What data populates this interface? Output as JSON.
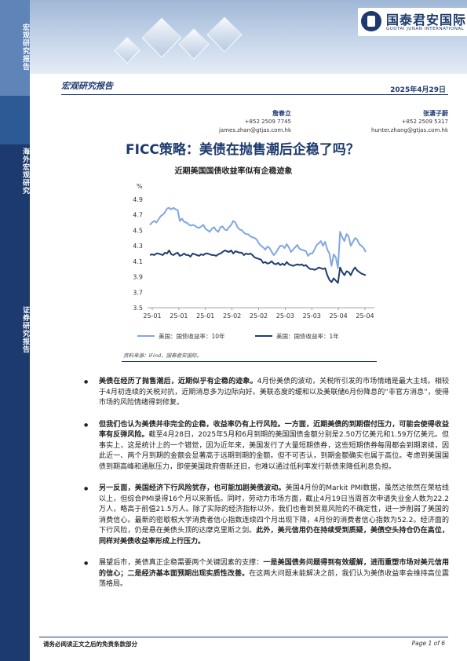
{
  "sidebar": {
    "label_top": "宏观研究报告",
    "label_mid": "海外宏观研究",
    "label_bottom": "证券研究报告"
  },
  "logo": {
    "cn": "国泰君安国际",
    "en": "GUOTAI JUNAN INTERNATIONAL"
  },
  "header": {
    "report_type": "宏观研究报告",
    "date": "2025年4月29日"
  },
  "authors": [
    {
      "name": "詹春立",
      "phone": "+852 2509 7745",
      "email": "james.zhan@gtjas.com.hk"
    },
    {
      "name": "张潇子蔚",
      "phone": "+852 2509 5317",
      "email": "hunter.zhang@gtjas.com.hk"
    }
  ],
  "title": "FICC策略：美债在抛售潮后企稳了吗？",
  "chart_title": "近期美国国债收益率似有企稳迹象",
  "chart_data": {
    "type": "line",
    "title": "近期美国国债收益率似有企稳迹象",
    "ylabel": "%",
    "ylim": [
      3.5,
      5.0
    ],
    "yticks": [
      3.5,
      3.7,
      3.9,
      4.1,
      4.3,
      4.5,
      4.7,
      4.9
    ],
    "xticks": [
      "25-01",
      "25-01",
      "25-01",
      "25-02",
      "25-02",
      "25-03",
      "25-03",
      "25-04",
      "25-04"
    ],
    "grid": false,
    "legend_position": "bottom",
    "colors": {
      "10y": "#7fa7df",
      "1y": "#1f3d6e"
    },
    "series": [
      {
        "name": "美国：国债收益率：10年",
        "values": [
          4.57,
          4.6,
          4.62,
          4.6,
          4.64,
          4.68,
          4.7,
          4.73,
          4.78,
          4.79,
          4.77,
          4.79,
          4.77,
          4.76,
          4.62,
          4.65,
          4.61,
          4.6,
          4.58,
          4.56,
          4.57,
          4.56,
          4.54,
          4.53,
          4.55,
          4.57,
          4.52,
          4.5,
          4.48,
          4.52,
          4.54,
          4.5,
          4.48,
          4.54,
          4.55,
          4.51,
          4.5,
          4.54,
          4.57,
          4.62,
          4.6,
          4.54,
          4.51,
          4.5,
          4.47,
          4.45,
          4.45,
          4.42,
          4.41,
          4.4,
          4.38,
          4.33,
          4.3,
          4.28,
          4.25,
          4.29,
          4.27,
          4.22,
          4.18,
          4.21,
          4.26,
          4.3,
          4.3,
          4.27,
          4.32,
          4.28,
          4.22,
          4.25,
          4.28,
          4.31,
          4.26,
          4.25,
          4.24,
          4.23,
          4.17,
          4.2,
          4.2,
          4.25,
          4.31,
          4.33,
          4.36,
          4.3,
          4.35,
          4.25,
          4.2,
          4.04,
          4.19,
          4.15,
          4.01,
          4.48,
          4.41,
          4.36,
          4.45,
          4.42,
          4.3,
          4.35,
          4.4,
          4.38,
          4.32,
          4.3,
          4.27,
          4.22
        ]
      },
      {
        "name": "美国：国债收益率：1年",
        "values": [
          4.18,
          4.19,
          4.18,
          4.2,
          4.2,
          4.19,
          4.18,
          4.21,
          4.2,
          4.24,
          4.19,
          4.18,
          4.2,
          4.21,
          4.17,
          4.18,
          4.2,
          4.18,
          4.18,
          4.16,
          4.2,
          4.19,
          4.18,
          4.17,
          4.19,
          4.18,
          4.2,
          4.2,
          4.19,
          4.18,
          4.18,
          4.17,
          4.19,
          4.2,
          4.22,
          4.24,
          4.23,
          4.22,
          4.24,
          4.2,
          4.23,
          4.22,
          4.21,
          4.21,
          4.18,
          4.2,
          4.19,
          4.2,
          4.18,
          4.15,
          4.14,
          4.13,
          4.12,
          4.08,
          4.09,
          4.07,
          4.08,
          4.1,
          4.07,
          4.06,
          4.08,
          4.05,
          4.07,
          4.05,
          4.09,
          4.06,
          4.05,
          4.04,
          4.05,
          4.06,
          4.05,
          4.06,
          4.04,
          4.05,
          4.02,
          4.0,
          4.0,
          3.99,
          4.0,
          4.02,
          4.01,
          4.0,
          4.01,
          3.92,
          3.86,
          3.83,
          3.88,
          3.85,
          3.82,
          4.02,
          3.96,
          3.92,
          3.97,
          3.96,
          3.92,
          3.98,
          4.02,
          3.98,
          3.96,
          3.94,
          3.93,
          3.92
        ]
      }
    ]
  },
  "source": "资料来源：iFind，国泰君安国际。",
  "bullets": [
    {
      "strong": "美债在经历了抛售潮后，近期似乎有企稳的迹象。",
      "rest": "4月份美债的波动，关税所引发的市场情绪是最大主线。相较于4月初连续的关税对抗，近期消息多为边际向好。美联态度的缓和以及美联储6月份降息的“非官方消息”，使得市场的风险情绪得到修复。"
    },
    {
      "strong": "但我们也认为美债并非完全的企稳，收益率仍有上行风险。一方面，近期美债的到期偿付压力，可能会使得收益率有反弹风险。",
      "rest": "截至4月28日，2025年5月和6月到期的美国国债金额分别是2.50万亿美元和1.59万亿美元。但事实上，这是统计上的一个错觉，因为近年来，美国发行了大量短期债券，这些短期债券每周都会到期滚续，因此近一、两个月到期的金额会显著高于远期到期的金额。但不可否认，到期金额确实也属于高位。考虑到美国国债到期高峰和通胀压力，即使美国政府借新还旧，也难以通过低利率发行新债来降低利息负担。"
    },
    {
      "strong": "另一反面，美国经济下行风险犹存，也可能加剧美债波动。",
      "rest": "美国4月份的Markit PMI数据，虽然达依然在荣枯线以上，但综合PMI录得16个月以来新低。同时，劳动力市场方面，截止4月19日当周首次申请失业金人数为22.2万人，略高于前值21.5万人。除了实际的经济指标以外，我们也看到贸易风险的不确定性，进一步削弱了美国的消费信心。最新的密歇根大学消费者信心指数连续四个月出现下降，4月份的消费者信心指数为52.2。经济面的下行风险，仍是悬在美债头顶的达摩克里斯之剑。",
      "strong2": "此外，美元信用仍在持续受到质疑，美债空头持仓仍在高位，同样对美债收益率形成上行压力。"
    },
    {
      "rest_lead": "展望后市，美债真正企稳需要两个关键因素的支撑：",
      "strong": "一是美国债务问题得到有效缓解，进而重塑市场对美元信用的信心；二是经济基本面预期出现实质性改善。",
      "rest": "在这两大问题未能解决之前，我们认为美债收益率会维持高位震荡格局。"
    }
  ],
  "footer": {
    "disclaimer": "请务必阅读正文之后的免责条款部分",
    "page": "Page 1 of 6"
  }
}
